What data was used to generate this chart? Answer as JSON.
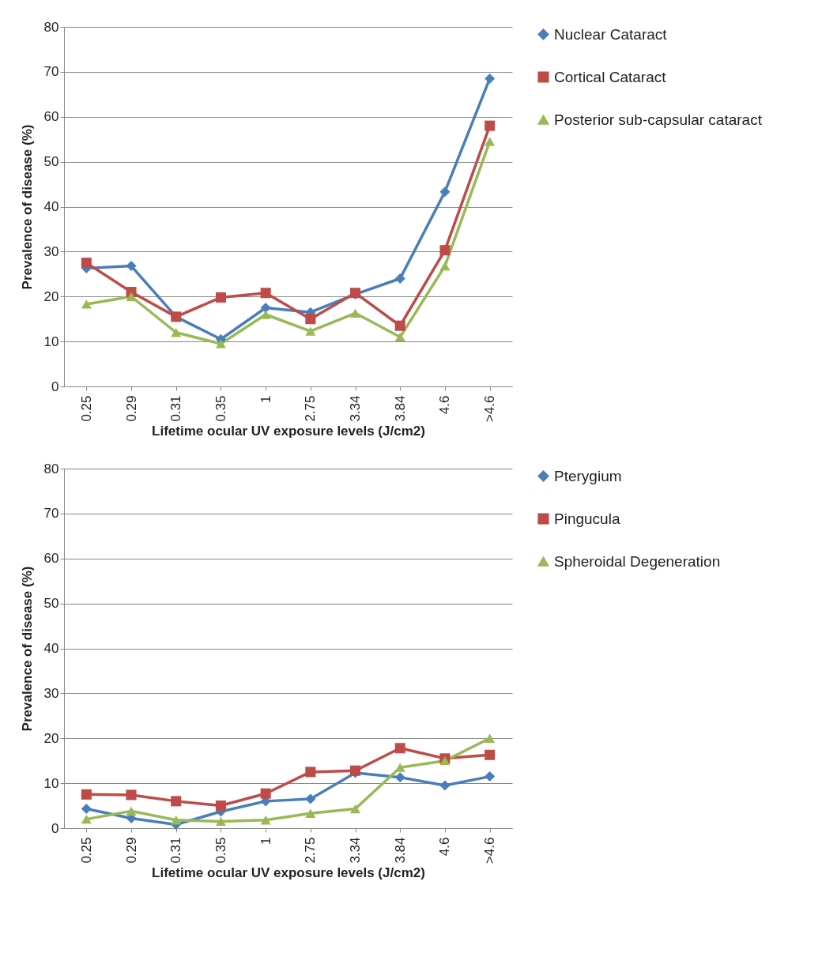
{
  "chart_data": [
    {
      "type": "line",
      "xlabel": "Lifetime ocular UV exposure levels (J/cm2)",
      "ylabel": "Prevalence of disease (%)",
      "categories": [
        "0.25",
        "0.29",
        "0.31",
        "0.35",
        "1",
        "2.75",
        "3.34",
        "3.84",
        "4.6",
        ">4.6"
      ],
      "series": [
        {
          "name": "Nuclear Cataract",
          "color": "#4a7ebb",
          "marker": "diamond",
          "values": [
            26.3,
            26.8,
            15.5,
            10.5,
            17.5,
            16.5,
            20.5,
            24,
            43.3,
            68.5
          ]
        },
        {
          "name": "Cortical Cataract",
          "color": "#be4b48",
          "marker": "square",
          "values": [
            27.5,
            21,
            15.5,
            19.8,
            20.8,
            15,
            20.8,
            13.5,
            30.3,
            58
          ]
        },
        {
          "name": "Posterior sub-capsular cataract",
          "color": "#98b954",
          "marker": "triangle",
          "values": [
            18.3,
            20,
            12,
            9.5,
            16,
            12.3,
            16.3,
            11,
            26.8,
            54.5
          ]
        }
      ],
      "ylim": [
        0,
        80
      ],
      "yticks": [
        0,
        10,
        20,
        30,
        40,
        50,
        60,
        70,
        80
      ],
      "grid": "y",
      "legend": "right"
    },
    {
      "type": "line",
      "xlabel": "Lifetime ocular UV exposure levels (J/cm2)",
      "ylabel": "Prevalence of disease (%)",
      "categories": [
        "0.25",
        "0.29",
        "0.31",
        "0.35",
        "1",
        "2.75",
        "3.34",
        "3.84",
        "4.6",
        ">4.6"
      ],
      "series": [
        {
          "name": "Pterygium",
          "color": "#4a7ebb",
          "marker": "diamond",
          "values": [
            4.3,
            2.2,
            0.8,
            3.7,
            6,
            6.5,
            12.3,
            11.3,
            9.5,
            11.5
          ]
        },
        {
          "name": "Pingucula",
          "color": "#be4b48",
          "marker": "square",
          "values": [
            7.5,
            7.4,
            6,
            5,
            7.7,
            12.5,
            12.8,
            17.8,
            15.5,
            16.3
          ]
        },
        {
          "name": "Spheroidal Degeneration",
          "color": "#98b954",
          "marker": "triangle",
          "values": [
            2,
            3.8,
            1.8,
            1.5,
            1.8,
            3.3,
            4.3,
            13.5,
            15,
            20
          ]
        }
      ],
      "ylim": [
        0,
        80
      ],
      "yticks": [
        0,
        10,
        20,
        30,
        40,
        50,
        60,
        70,
        80
      ],
      "grid": "y",
      "legend": "right"
    }
  ]
}
